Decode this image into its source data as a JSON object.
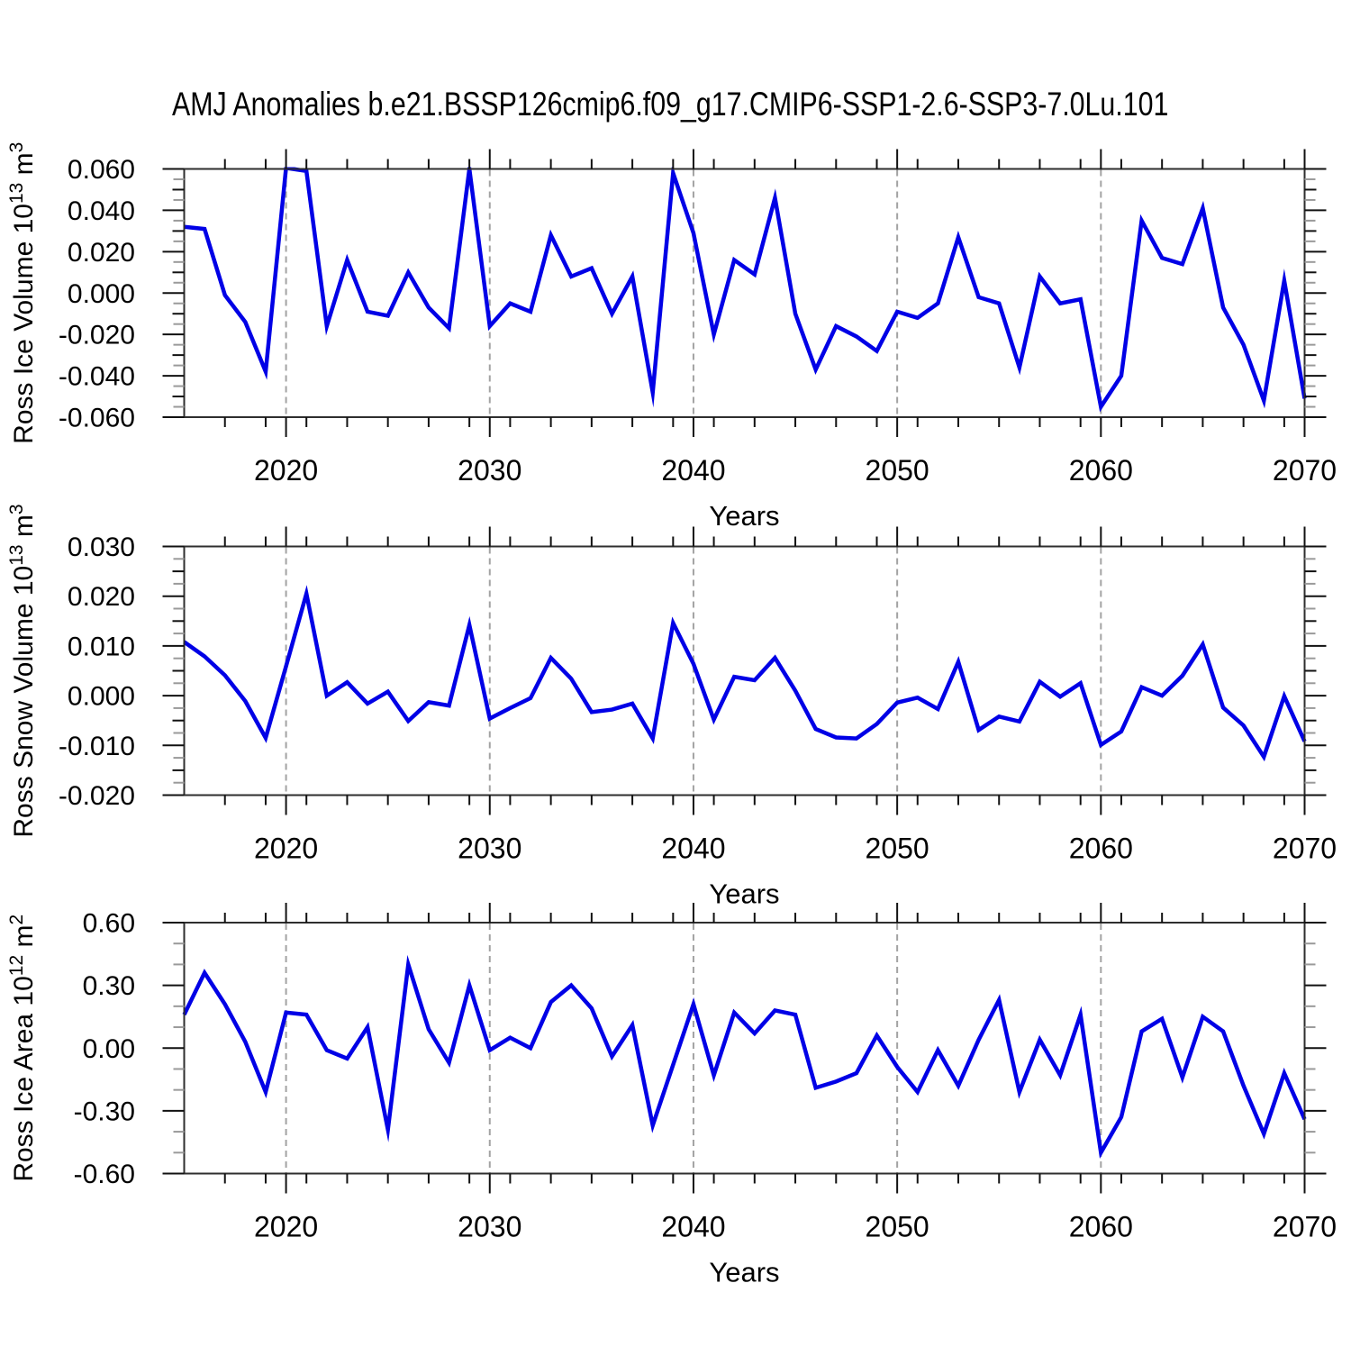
{
  "title": "AMJ Anomalies b.e21.BSSP126cmip6.f09_g17.CMIP6-SSP1-2.6-SSP3-7.0Lu.101",
  "colors": {
    "line": "#0000e6",
    "axis": "#2e2e2e",
    "tick_major": "#111111",
    "tick_minor": "#9a9a9a",
    "grid": "#a3a3a3",
    "text": "#000000"
  },
  "chart_data": [
    {
      "type": "line",
      "name": "ross-ice-volume",
      "ylabel": "Ross Ice Volume 10^13 m^3",
      "ylabel_segments": [
        [
          "Ross Ice Volume 10",
          false
        ],
        [
          "13",
          true
        ],
        [
          " m",
          false
        ],
        [
          "3",
          true
        ]
      ],
      "xlabel": "Years",
      "x": {
        "min": 2015,
        "max": 2070,
        "major_step": 10,
        "minor_step": 2,
        "tick_values": [
          2020,
          2030,
          2040,
          2050,
          2060,
          2070
        ],
        "tick_labels": [
          "2020",
          "2030",
          "2040",
          "2050",
          "2060",
          "2070"
        ],
        "grid_years": [
          2020,
          2030,
          2040,
          2050,
          2060
        ]
      },
      "y": {
        "min": -0.06,
        "max": 0.06,
        "label_step": 0.02,
        "mid_step": 0.01,
        "minor_step": 0.005,
        "tick_labels": [
          "0.060",
          "0.040",
          "0.020",
          "0.000",
          "-0.020",
          "-0.040",
          "-0.060"
        ]
      },
      "series_x_start": 2015,
      "series_x_step": 1,
      "values": [
        0.032,
        0.031,
        -0.001,
        -0.014,
        -0.038,
        0.0605,
        0.059,
        -0.016,
        0.016,
        -0.009,
        -0.011,
        0.01,
        -0.007,
        -0.017,
        0.06,
        -0.016,
        -0.005,
        -0.009,
        0.028,
        0.008,
        0.012,
        -0.01,
        0.008,
        -0.048,
        0.058,
        0.029,
        -0.02,
        0.016,
        0.009,
        0.046,
        -0.01,
        -0.037,
        -0.016,
        -0.021,
        -0.028,
        -0.009,
        -0.012,
        -0.005,
        0.027,
        -0.002,
        -0.005,
        -0.036,
        0.008,
        -0.005,
        -0.003,
        -0.055,
        -0.04,
        0.035,
        0.017,
        0.014,
        0.041,
        -0.007,
        -0.025,
        -0.052,
        0.006,
        -0.051
      ]
    },
    {
      "type": "line",
      "name": "ross-snow-volume",
      "ylabel": "Ross Snow Volume 10^13 m^3",
      "ylabel_segments": [
        [
          "Ross Snow Volume 10",
          false
        ],
        [
          "13",
          true
        ],
        [
          " m",
          false
        ],
        [
          "3",
          true
        ]
      ],
      "xlabel": "Years",
      "x": {
        "min": 2015,
        "max": 2070,
        "major_step": 10,
        "minor_step": 2,
        "tick_values": [
          2020,
          2030,
          2040,
          2050,
          2060,
          2070
        ],
        "tick_labels": [
          "2020",
          "2030",
          "2040",
          "2050",
          "2060",
          "2070"
        ],
        "grid_years": [
          2020,
          2030,
          2040,
          2050,
          2060
        ]
      },
      "y": {
        "min": -0.02,
        "max": 0.03,
        "label_step": 0.01,
        "mid_step": 0.005,
        "minor_step": 0.0025,
        "tick_labels": [
          "0.030",
          "0.020",
          "0.010",
          "0.000",
          "-0.010",
          "-0.020"
        ]
      },
      "series_x_start": 2015,
      "series_x_step": 1,
      "values": [
        0.0108,
        0.0079,
        0.0041,
        -0.0011,
        -0.0085,
        0.0059,
        0.0205,
        0.0,
        0.0027,
        -0.0016,
        0.0008,
        -0.0051,
        -0.0013,
        -0.002,
        0.0142,
        -0.0046,
        -0.0025,
        -0.0005,
        0.0076,
        0.0034,
        -0.0033,
        -0.0028,
        -0.0016,
        -0.0086,
        0.0146,
        0.0064,
        -0.0048,
        0.0038,
        0.0031,
        0.0076,
        0.001,
        -0.0067,
        -0.0084,
        -0.0086,
        -0.0057,
        -0.0014,
        -0.0004,
        -0.0027,
        0.0068,
        -0.0069,
        -0.0042,
        -0.0052,
        0.0028,
        -0.0002,
        0.0025,
        -0.0099,
        -0.0072,
        0.0017,
        0.0,
        0.004,
        0.0103,
        -0.0024,
        -0.006,
        -0.0123,
        -0.0001,
        -0.0092
      ]
    },
    {
      "type": "line",
      "name": "ross-ice-area",
      "ylabel": "Ross Ice Area 10^12 m^2",
      "ylabel_segments": [
        [
          "Ross Ice Area 10",
          false
        ],
        [
          "12",
          true
        ],
        [
          " m",
          false
        ],
        [
          "2",
          true
        ]
      ],
      "xlabel": "Years",
      "x": {
        "min": 2015,
        "max": 2070,
        "major_step": 10,
        "minor_step": 2,
        "tick_values": [
          2020,
          2030,
          2040,
          2050,
          2060,
          2070
        ],
        "tick_labels": [
          "2020",
          "2030",
          "2040",
          "2050",
          "2060",
          "2070"
        ],
        "grid_years": [
          2020,
          2030,
          2040,
          2050,
          2060
        ]
      },
      "y": {
        "min": -0.6,
        "max": 0.6,
        "label_step": 0.3,
        "mid_step": null,
        "minor_step": 0.1,
        "tick_labels": [
          "0.60",
          "0.30",
          "0.00",
          "-0.30",
          "-0.60"
        ]
      },
      "series_x_start": 2015,
      "series_x_step": 1,
      "values": [
        0.16,
        0.36,
        0.21,
        0.03,
        -0.21,
        0.17,
        0.16,
        -0.01,
        -0.05,
        0.1,
        -0.39,
        0.4,
        0.09,
        -0.07,
        0.3,
        -0.01,
        0.05,
        0.0,
        0.22,
        0.3,
        0.19,
        -0.04,
        0.11,
        -0.37,
        -0.08,
        0.21,
        -0.13,
        0.17,
        0.07,
        0.18,
        0.16,
        -0.19,
        -0.16,
        -0.12,
        0.06,
        -0.09,
        -0.21,
        -0.01,
        -0.18,
        0.04,
        0.23,
        -0.21,
        0.04,
        -0.13,
        0.16,
        -0.5,
        -0.33,
        0.08,
        0.14,
        -0.14,
        0.15,
        0.08,
        -0.18,
        -0.41,
        -0.12,
        -0.34
      ]
    }
  ]
}
